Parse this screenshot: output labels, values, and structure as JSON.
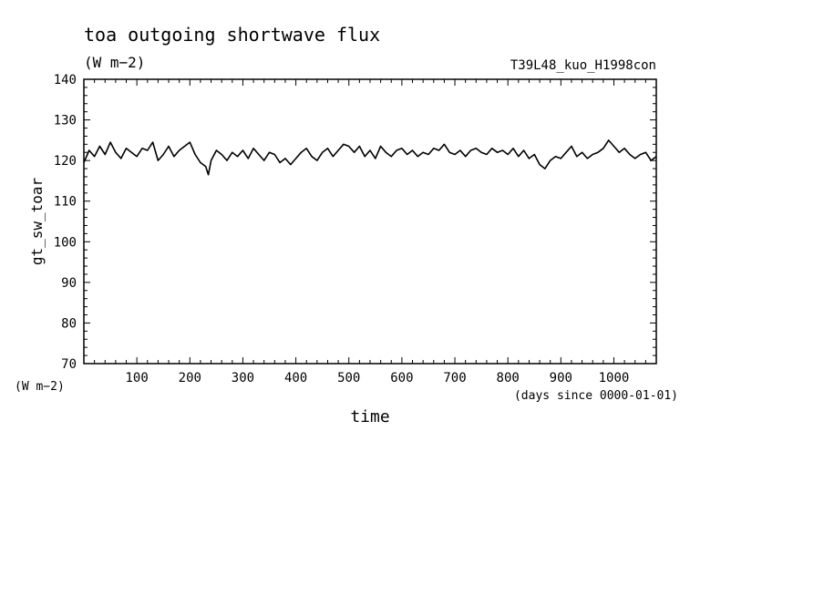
{
  "chart_data": {
    "type": "line",
    "title": "toa outgoing shortwave flux",
    "title_units": "(W m−2)",
    "run_label": "T39L48_kuo_H1998con",
    "ylabel": "gt_sw_toar",
    "yunits": "(W m−2)",
    "xlabel": "time",
    "xunits": "(days since 0000-01-01)",
    "xlim": [
      0,
      1080
    ],
    "ylim": [
      70,
      140
    ],
    "x_ticks": [
      100,
      200,
      300,
      400,
      500,
      600,
      700,
      800,
      900,
      1000
    ],
    "x_tick_labels": [
      "100",
      "200",
      "300",
      "400",
      "500",
      "600",
      "700",
      "800",
      "900",
      "1000"
    ],
    "y_ticks": [
      70,
      80,
      90,
      100,
      110,
      120,
      130,
      140
    ],
    "y_tick_labels": [
      "70",
      "80",
      "90",
      "100",
      "110",
      "120",
      "130",
      "140"
    ],
    "grid": false,
    "legend": "none",
    "line_color": "#000000",
    "series": [
      {
        "x": [
          0,
          10,
          20,
          30,
          40,
          50,
          60,
          70,
          80,
          90,
          100,
          110,
          120,
          130,
          140,
          150,
          160,
          170,
          180,
          190,
          200,
          210,
          220,
          230,
          235,
          240,
          250,
          260,
          270,
          280,
          290,
          300,
          310,
          320,
          330,
          340,
          350,
          360,
          370,
          380,
          390,
          400,
          410,
          420,
          430,
          440,
          450,
          460,
          470,
          480,
          490,
          500,
          510,
          520,
          530,
          540,
          550,
          560,
          570,
          580,
          590,
          600,
          610,
          620,
          630,
          640,
          650,
          660,
          670,
          680,
          690,
          700,
          710,
          720,
          730,
          740,
          750,
          760,
          770,
          780,
          790,
          800,
          810,
          820,
          830,
          840,
          850,
          860,
          870,
          880,
          890,
          900,
          910,
          920,
          930,
          940,
          950,
          960,
          970,
          980,
          990,
          1000,
          1010,
          1020,
          1030,
          1040,
          1050,
          1060,
          1070,
          1080
        ],
        "y": [
          119.5,
          122.5,
          121.0,
          123.5,
          121.5,
          124.5,
          122.0,
          120.5,
          123.0,
          122.0,
          121.0,
          123.0,
          122.5,
          124.5,
          120.0,
          121.5,
          123.5,
          121.0,
          122.5,
          123.5,
          124.5,
          121.5,
          119.5,
          118.5,
          116.5,
          120.0,
          122.5,
          121.5,
          120.0,
          122.0,
          121.0,
          122.5,
          120.5,
          123.0,
          121.5,
          120.0,
          122.0,
          121.5,
          119.5,
          120.5,
          119.0,
          120.5,
          122.0,
          123.0,
          121.0,
          120.0,
          122.0,
          123.0,
          121.0,
          122.5,
          124.0,
          123.5,
          122.0,
          123.5,
          121.0,
          122.5,
          120.5,
          123.5,
          122.0,
          121.0,
          122.5,
          123.0,
          121.5,
          122.5,
          121.0,
          122.0,
          121.5,
          123.0,
          122.5,
          124.0,
          122.0,
          121.5,
          122.5,
          121.0,
          122.5,
          123.0,
          122.0,
          121.5,
          123.0,
          122.0,
          122.5,
          121.5,
          123.0,
          121.0,
          122.5,
          120.5,
          121.5,
          119.0,
          118.0,
          120.0,
          121.0,
          120.5,
          122.0,
          123.5,
          121.0,
          122.0,
          120.5,
          121.5,
          122.0,
          123.0,
          125.0,
          123.5,
          122.0,
          123.0,
          121.5,
          120.5,
          121.5,
          122.0,
          120.0,
          121.0
        ]
      }
    ]
  }
}
